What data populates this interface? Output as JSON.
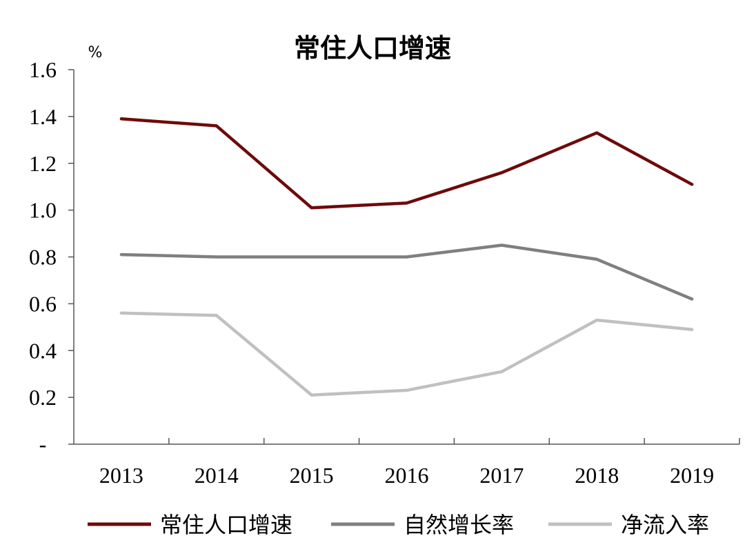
{
  "chart_data": {
    "type": "line",
    "title": "常住人口增速",
    "ylabel": "%",
    "xlabel": "",
    "categories": [
      "2013",
      "2014",
      "2015",
      "2016",
      "2017",
      "2018",
      "2019"
    ],
    "ylim": [
      0,
      1.6
    ],
    "yticks": [
      0,
      0.2,
      0.4,
      0.6,
      0.8,
      1.0,
      1.2,
      1.4,
      1.6
    ],
    "ytick_labels": [
      "-",
      "0.2",
      "0.4",
      "0.6",
      "0.8",
      "1.0",
      "1.2",
      "1.4",
      "1.6"
    ],
    "grid": false,
    "legend_position": "bottom",
    "series": [
      {
        "name": "常住人口增速",
        "color": "#6e0a0a",
        "values": [
          1.39,
          1.36,
          1.01,
          1.03,
          1.16,
          1.33,
          1.11
        ]
      },
      {
        "name": "自然增长率",
        "color": "#7f7f7f",
        "values": [
          0.81,
          0.8,
          0.8,
          0.8,
          0.85,
          0.79,
          0.62
        ]
      },
      {
        "name": "净流入率",
        "color": "#c0c0c0",
        "values": [
          0.56,
          0.55,
          0.21,
          0.23,
          0.31,
          0.53,
          0.49
        ]
      }
    ]
  }
}
